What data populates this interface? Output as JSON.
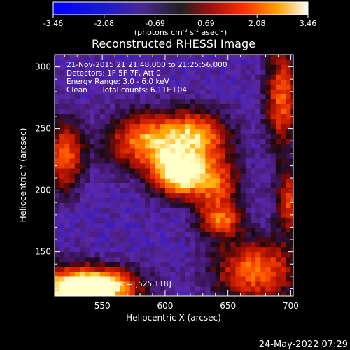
{
  "chart_data": {
    "type": "heatmap",
    "title": "Reconstructed RHESSI Image",
    "xlabel": "Heliocentric X (arcsec)",
    "ylabel": "Heliocentric Y (arcsec)",
    "xlim": [
      512,
      702
    ],
    "ylim": [
      114,
      310
    ],
    "xticks": [
      550,
      600,
      650,
      700
    ],
    "yticks": [
      150,
      200,
      250,
      300
    ],
    "colorbar": {
      "ticks": [
        "-3.46",
        "-2.08",
        "-0.69",
        "0.69",
        "2.08",
        "3.46"
      ],
      "range": [
        -3.46,
        3.46
      ],
      "unit": "(photons cm",
      "unit_parts": [
        "(photons cm",
        "-2",
        " s",
        "-1",
        " asec",
        "-2",
        ")"
      ]
    },
    "info": {
      "time_range": "21-Nov-2015 21:21:48.000 to 21:25:56.000",
      "detectors": "Detectors: 1F 5F 7F, Att 0",
      "energy": "Energy Range: 3.0 - 6.0 keV",
      "method": "Clean",
      "counts": "Total counts: 6.11E+04"
    },
    "peak_label": "Position of Peak = [525,118]",
    "sources": [
      {
        "x": 610,
        "y": 213,
        "amp": 3.46,
        "sx": 14,
        "sy": 12
      },
      {
        "x": 585,
        "y": 240,
        "amp": 2.2,
        "sx": 22,
        "sy": 16
      },
      {
        "x": 625,
        "y": 245,
        "amp": 1.9,
        "sx": 18,
        "sy": 14
      },
      {
        "x": 640,
        "y": 205,
        "amp": 1.6,
        "sx": 14,
        "sy": 18
      },
      {
        "x": 645,
        "y": 175,
        "amp": 1.1,
        "sx": 12,
        "sy": 9
      },
      {
        "x": 525,
        "y": 118,
        "amp": 3.2,
        "sx": 22,
        "sy": 14
      },
      {
        "x": 555,
        "y": 122,
        "amp": 2.2,
        "sx": 20,
        "sy": 10
      },
      {
        "x": 520,
        "y": 228,
        "amp": 1.7,
        "sx": 10,
        "sy": 20
      },
      {
        "x": 672,
        "y": 135,
        "amp": 1.9,
        "sx": 24,
        "sy": 18
      },
      {
        "x": 693,
        "y": 275,
        "amp": 1.7,
        "sx": 9,
        "sy": 30
      },
      {
        "x": 700,
        "y": 190,
        "amp": 1.3,
        "sx": 8,
        "sy": 18
      }
    ],
    "background_level": -1.3
  },
  "footer": {
    "date": "24-May-2022 07:29"
  }
}
